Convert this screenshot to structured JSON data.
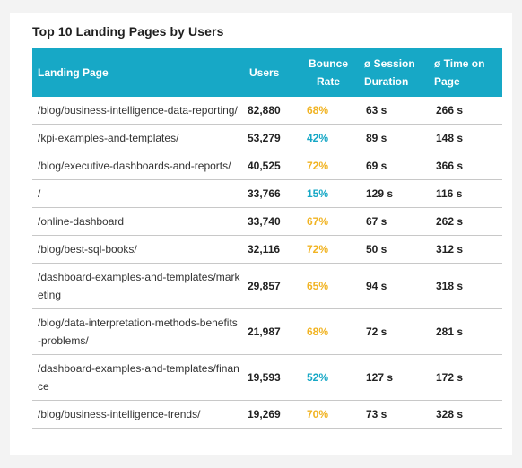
{
  "title": "Top 10 Landing Pages by Users",
  "colors": {
    "header": "#17a8c6",
    "bounce_high": "#f1b424",
    "bounce_low": "#17a8c6"
  },
  "chart_data": {
    "type": "table",
    "title": "Top 10 Landing Pages by Users",
    "columns": [
      "Landing Page",
      "Users",
      "Bounce Rate",
      "ø Session Duration",
      "ø Time on Page"
    ],
    "rows": [
      {
        "page": "/blog/business-intelligence-data-reporting/",
        "users": "82,880",
        "bounce": "68%",
        "bounce_level": "high",
        "duration": "63 s",
        "time_on_page": "266 s"
      },
      {
        "page": "/kpi-examples-and-templates/",
        "users": "53,279",
        "bounce": "42%",
        "bounce_level": "low",
        "duration": "89 s",
        "time_on_page": "148 s"
      },
      {
        "page": "/blog/executive-dashboards-and-reports/",
        "users": "40,525",
        "bounce": "72%",
        "bounce_level": "high",
        "duration": "69 s",
        "time_on_page": "366 s"
      },
      {
        "page": "/",
        "users": "33,766",
        "bounce": "15%",
        "bounce_level": "low",
        "duration": "129 s",
        "time_on_page": "116 s"
      },
      {
        "page": "/online-dashboard",
        "users": "33,740",
        "bounce": "67%",
        "bounce_level": "high",
        "duration": "67 s",
        "time_on_page": "262 s"
      },
      {
        "page": "/blog/best-sql-books/",
        "users": "32,116",
        "bounce": "72%",
        "bounce_level": "high",
        "duration": "50 s",
        "time_on_page": "312 s"
      },
      {
        "page": "/dashboard-examples-and-templates/marketing",
        "users": "29,857",
        "bounce": "65%",
        "bounce_level": "high",
        "duration": "94 s",
        "time_on_page": "318 s"
      },
      {
        "page": "/blog/data-interpretation-methods-benefits-problems/",
        "users": "21,987",
        "bounce": "68%",
        "bounce_level": "high",
        "duration": "72 s",
        "time_on_page": "281 s"
      },
      {
        "page": "/dashboard-examples-and-templates/finance",
        "users": "19,593",
        "bounce": "52%",
        "bounce_level": "low",
        "duration": "127 s",
        "time_on_page": "172 s"
      },
      {
        "page": "/blog/business-intelligence-trends/",
        "users": "19,269",
        "bounce": "70%",
        "bounce_level": "high",
        "duration": "73 s",
        "time_on_page": "328 s"
      }
    ]
  }
}
